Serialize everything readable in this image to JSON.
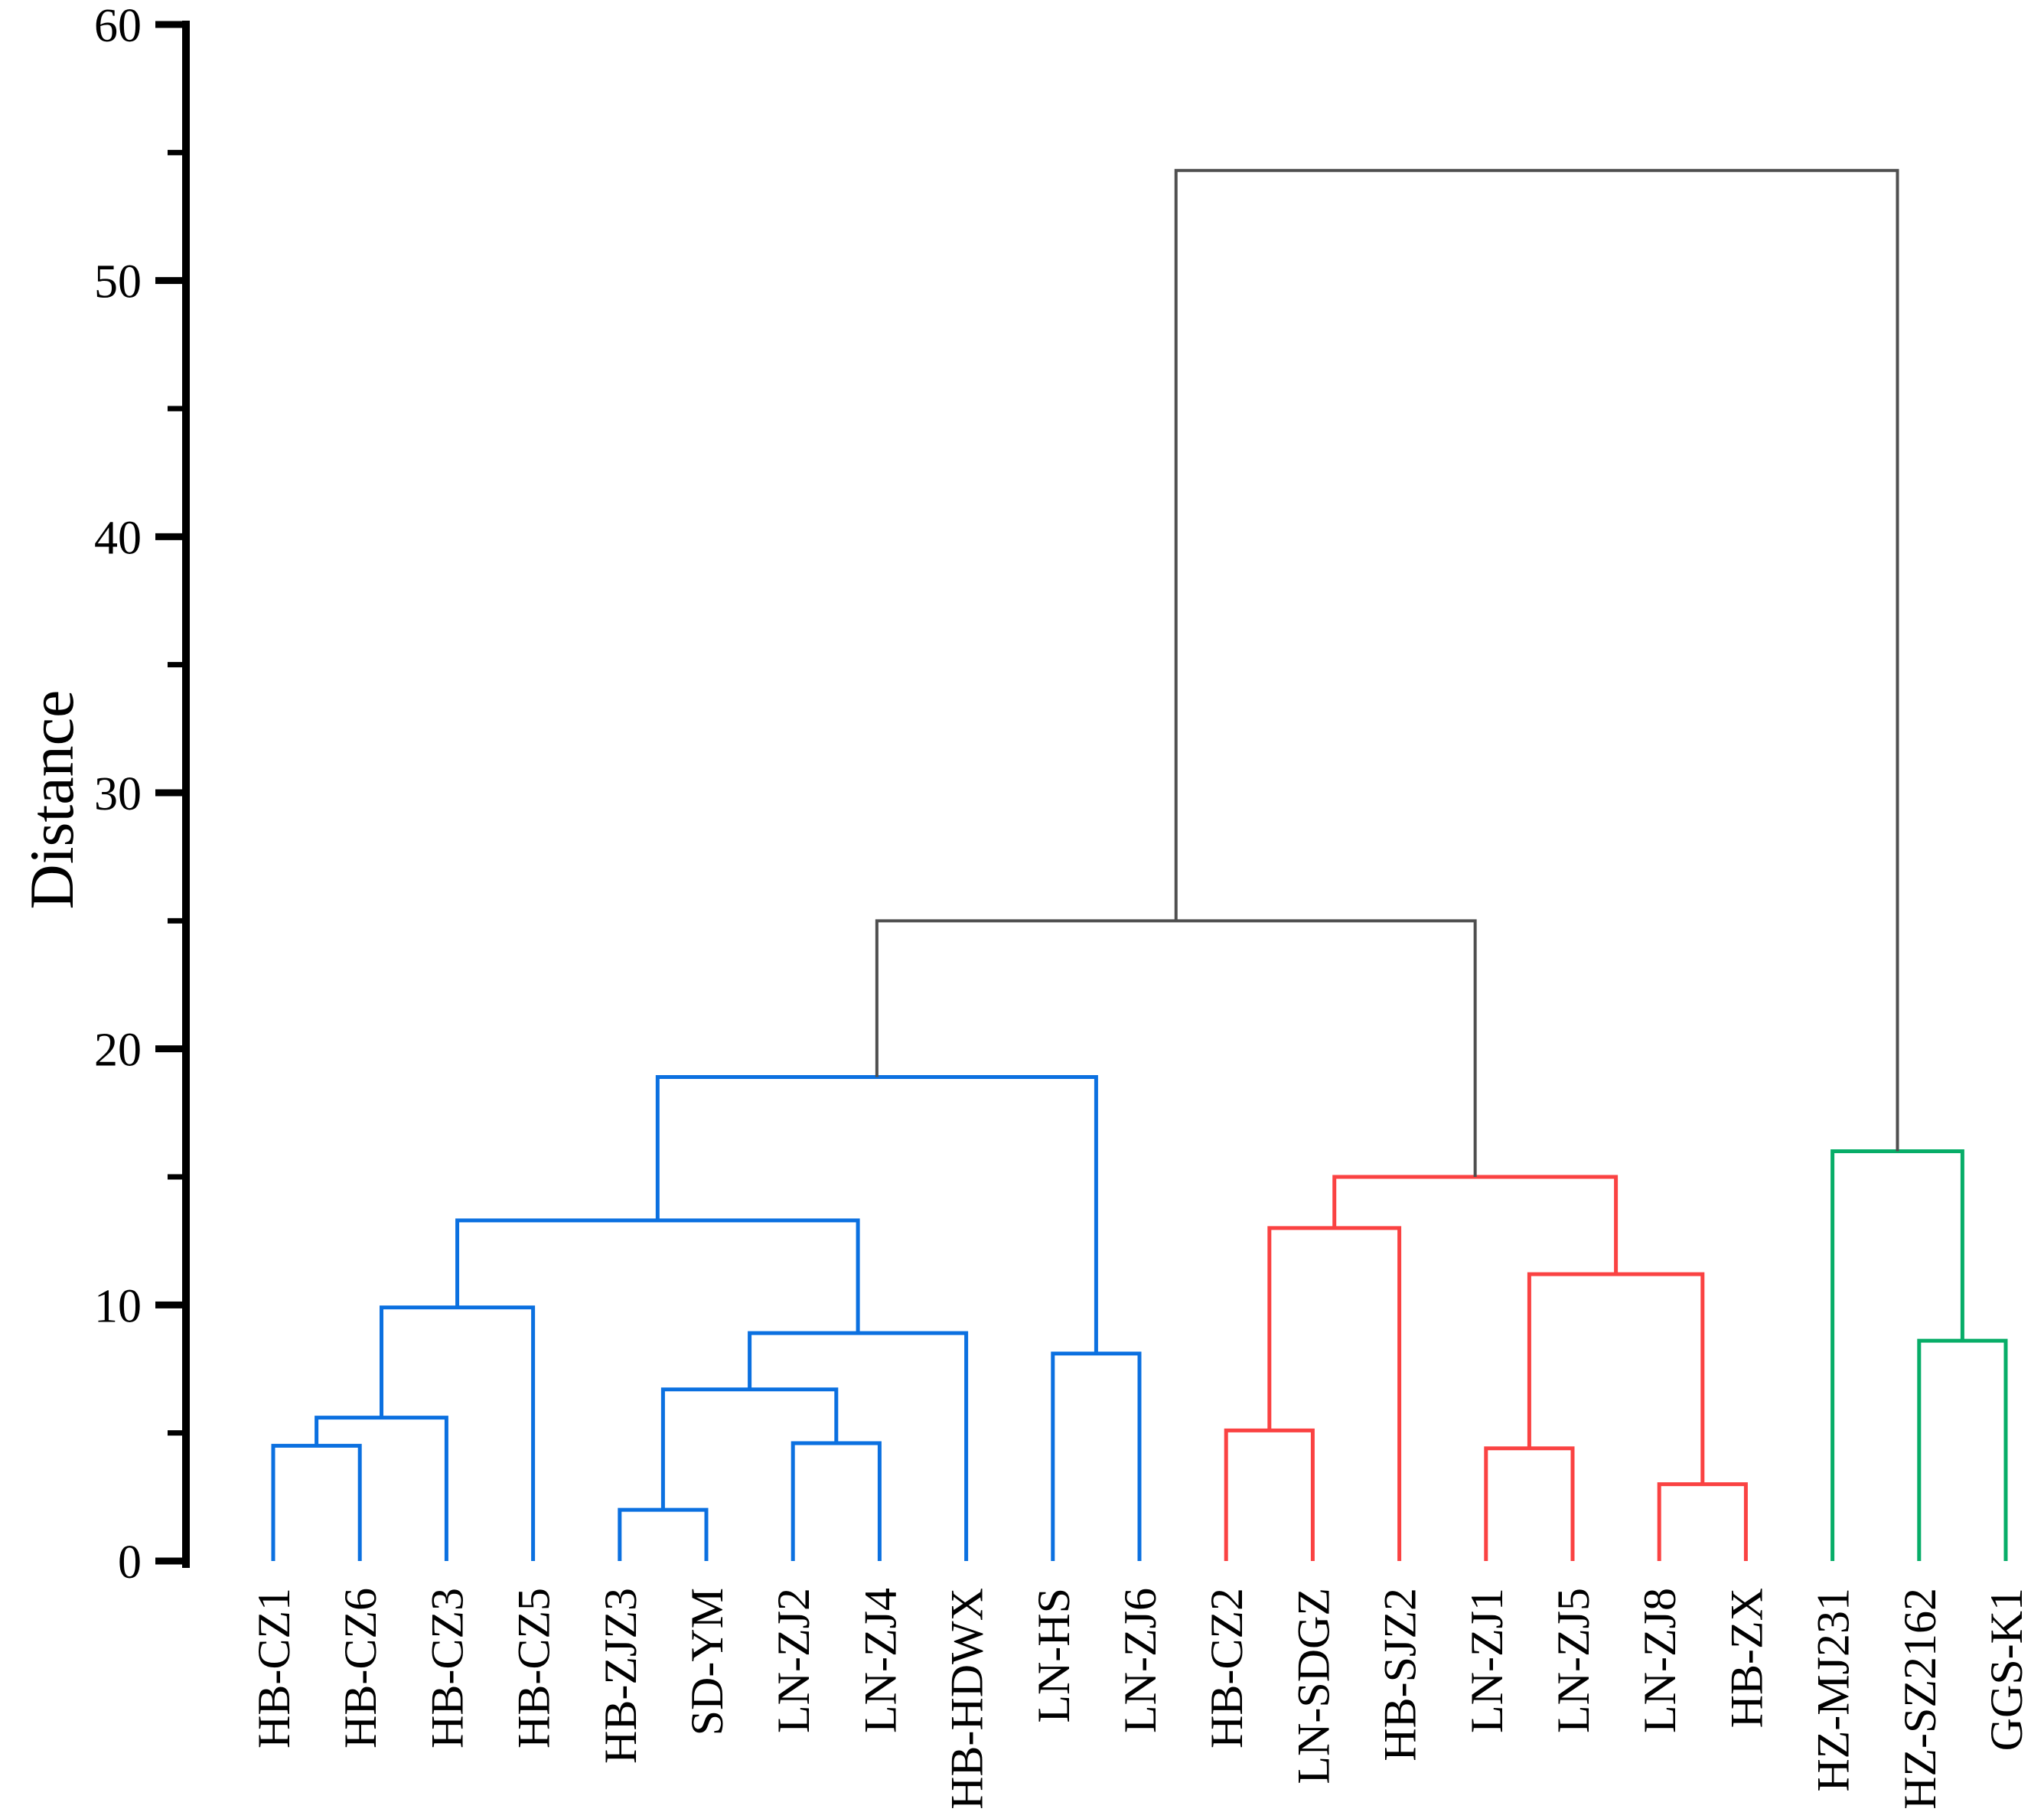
{
  "figure": {
    "background": "#ffffff"
  },
  "chart_data": {
    "type": "dendrogram",
    "title": "",
    "ylabel": "Distance",
    "ylim": [
      0,
      60
    ],
    "ytick_major_values": [
      0,
      10,
      20,
      30,
      40,
      50,
      60
    ],
    "ytick_major_labels": [
      "0",
      "10",
      "20",
      "30",
      "40",
      "50",
      "60"
    ],
    "ytick_minor_values": [
      5,
      15,
      25,
      35,
      45,
      55
    ],
    "grid": "off",
    "legend": "none",
    "leaves": [
      "HB-CZ1",
      "HB-CZ6",
      "HB-CZ3",
      "HB-CZ5",
      "HB-ZJZ3",
      "SD-YM",
      "LN-ZJ2",
      "LN-ZJ4",
      "HB-HDWX",
      "LN-HS",
      "LN-ZJ6",
      "HB-CZ2",
      "LN-SDGZ",
      "HB-SJZ2",
      "LN-ZJ1",
      "LN-ZJ5",
      "LN-ZJ8",
      "HB-ZX",
      "HZ-MJ231",
      "HZ-SZ2162",
      "GGS-K1"
    ],
    "merges": [
      {
        "id": "M1",
        "a": "L0",
        "b": "L1",
        "height": 4.5,
        "color_key": "blue"
      },
      {
        "id": "M2",
        "a": "M1",
        "b": "L2",
        "height": 5.6,
        "color_key": "blue"
      },
      {
        "id": "M3",
        "a": "M2",
        "b": "L3",
        "height": 9.9,
        "color_key": "blue"
      },
      {
        "id": "M4",
        "a": "L4",
        "b": "L5",
        "height": 2.0,
        "color_key": "blue"
      },
      {
        "id": "M5",
        "a": "L6",
        "b": "L7",
        "height": 4.6,
        "color_key": "blue"
      },
      {
        "id": "M6",
        "a": "M4",
        "b": "M5",
        "height": 6.7,
        "color_key": "blue"
      },
      {
        "id": "M7",
        "a": "M6",
        "b": "L8",
        "height": 8.9,
        "color_key": "blue"
      },
      {
        "id": "M8",
        "a": "M3",
        "b": "M7",
        "height": 13.3,
        "color_key": "blue"
      },
      {
        "id": "M9",
        "a": "L9",
        "b": "L10",
        "height": 8.1,
        "color_key": "blue"
      },
      {
        "id": "M10",
        "a": "M8",
        "b": "M9",
        "height": 18.9,
        "color_key": "blue"
      },
      {
        "id": "M11",
        "a": "L11",
        "b": "L12",
        "height": 5.1,
        "color_key": "red"
      },
      {
        "id": "M12",
        "a": "M11",
        "b": "L13",
        "height": 13.0,
        "color_key": "red"
      },
      {
        "id": "M13",
        "a": "L14",
        "b": "L15",
        "height": 4.4,
        "color_key": "red"
      },
      {
        "id": "M14",
        "a": "L16",
        "b": "L17",
        "height": 3.0,
        "color_key": "red"
      },
      {
        "id": "M15",
        "a": "M13",
        "b": "M14",
        "height": 11.2,
        "color_key": "red"
      },
      {
        "id": "M16",
        "a": "M12",
        "b": "M15",
        "height": 15.0,
        "color_key": "red"
      },
      {
        "id": "M17",
        "a": "L19",
        "b": "L20",
        "height": 8.6,
        "color_key": "green"
      },
      {
        "id": "M18",
        "a": "L18",
        "b": "M17",
        "height": 16.0,
        "color_key": "green"
      },
      {
        "id": "M19",
        "a": "M10",
        "b": "M16",
        "height": 25.0,
        "color_key": "gray"
      },
      {
        "id": "M20",
        "a": "M19",
        "b": "M18",
        "height": 54.3,
        "color_key": "gray"
      }
    ],
    "colors": {
      "blue": "#0b70e0",
      "red": "#fa4242",
      "green": "#07ad68",
      "gray": "#4f4f4f",
      "axis": "#000000"
    }
  }
}
